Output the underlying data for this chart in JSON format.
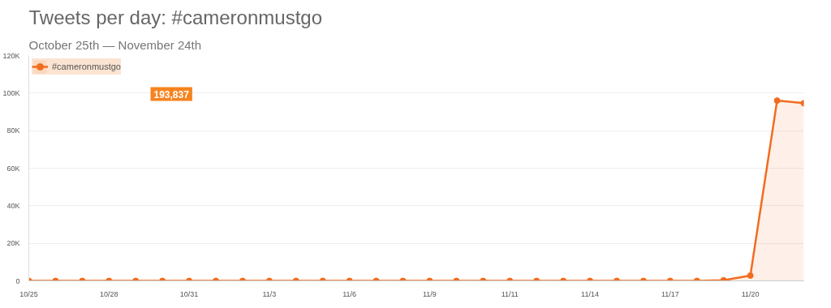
{
  "chart_data": {
    "type": "area",
    "title": "Tweets per day: #cameronmustgo",
    "subtitle": "October 25th — November 24th",
    "categories": [
      "10/25",
      null,
      null,
      "10/28",
      null,
      null,
      "10/31",
      null,
      null,
      "11/3",
      null,
      null,
      "11/6",
      null,
      null,
      "11/9",
      null,
      null,
      "11/11",
      null,
      null,
      "11/14",
      null,
      null,
      "11/17",
      null,
      null,
      "11/20",
      null,
      null
    ],
    "series": [
      {
        "name": "#cameronmustgo",
        "color": "#f26c1e",
        "values": [
          0,
          0,
          0,
          0,
          0,
          0,
          0,
          0,
          0,
          0,
          0,
          0,
          0,
          0,
          0,
          0,
          0,
          0,
          0,
          0,
          0,
          0,
          0,
          0,
          0,
          0,
          300,
          2800,
          96000,
          94600
        ]
      }
    ],
    "ylim": [
      0,
      120000
    ],
    "yticks": [
      {
        "value": 0,
        "label": "0"
      },
      {
        "value": 20000,
        "label": "20K"
      },
      {
        "value": 40000,
        "label": "40K"
      },
      {
        "value": 60000,
        "label": "60K"
      },
      {
        "value": 80000,
        "label": "80K"
      },
      {
        "value": 100000,
        "label": "100K"
      },
      {
        "value": 120000,
        "label": "120K"
      }
    ],
    "grid": "y",
    "marker": "circle",
    "legend": "top left",
    "annotations": [
      "193,837"
    ]
  }
}
